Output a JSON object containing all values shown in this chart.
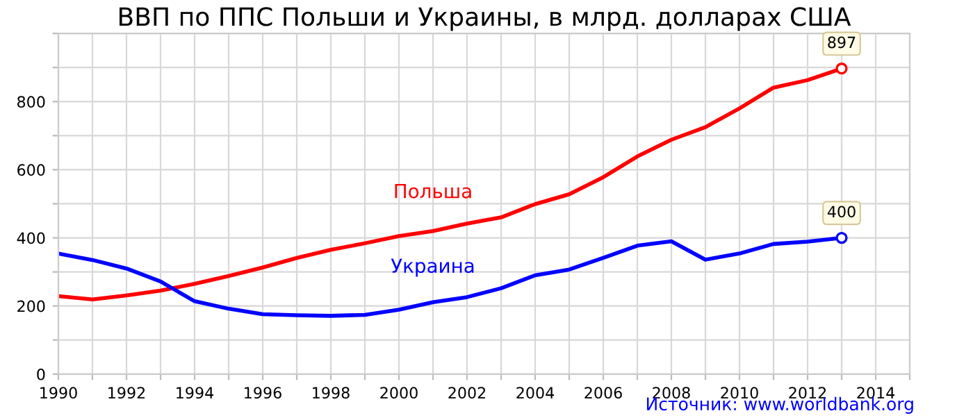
{
  "chart_data": {
    "type": "line",
    "title": "ВВП по ППС Польши и Украины, в млрд. долларах США",
    "x": [
      1990,
      1991,
      1992,
      1993,
      1994,
      1995,
      1996,
      1997,
      1998,
      1999,
      2000,
      2001,
      2002,
      2003,
      2004,
      2005,
      2006,
      2007,
      2008,
      2009,
      2010,
      2011,
      2012,
      2013
    ],
    "series": [
      {
        "name": "Польша",
        "color": "#ff0000",
        "values": [
          229,
          219,
          231,
          245,
          265,
          288,
          313,
          341,
          365,
          384,
          405,
          420,
          442,
          460,
          499,
          528,
          578,
          639,
          688,
          725,
          780,
          841,
          863,
          897
        ]
      },
      {
        "name": "Украина",
        "color": "#0000ff",
        "values": [
          354,
          335,
          310,
          272,
          214,
          192,
          176,
          173,
          171,
          174,
          189,
          211,
          226,
          252,
          290,
          307,
          341,
          377,
          390,
          336,
          354,
          382,
          389,
          400
        ]
      }
    ],
    "xlim": [
      1990,
      2015
    ],
    "xticks": [
      1990,
      {
        "value": 1991,
        "label": null
      },
      1992,
      {
        "value": 1993,
        "label": null
      },
      1994,
      {
        "value": 1995,
        "label": null
      },
      1996,
      {
        "value": 1997,
        "label": null
      },
      1998,
      {
        "value": 1999,
        "label": null
      },
      2000,
      {
        "value": 2001,
        "label": null
      },
      2002,
      {
        "value": 2003,
        "label": null
      },
      2004,
      {
        "value": 2005,
        "label": null
      },
      2006,
      {
        "value": 2007,
        "label": null
      },
      2008,
      {
        "value": 2009,
        "label": null
      },
      2010,
      {
        "value": 2011,
        "label": null
      },
      2012,
      {
        "value": 2013,
        "label": null
      },
      2014,
      {
        "value": 2015,
        "label": null
      }
    ],
    "ylim": [
      0,
      1000
    ],
    "yticks": [
      0,
      {
        "value": 100,
        "label": null
      },
      200,
      {
        "value": 300,
        "label": null
      },
      400,
      {
        "value": 500,
        "label": null
      },
      600,
      {
        "value": 700,
        "label": null
      },
      800,
      {
        "value": 900,
        "label": null
      },
      {
        "value": 1000,
        "label": null
      }
    ],
    "grid": true,
    "marker": "none",
    "line_style": "solid",
    "legend": false,
    "annotations": [
      {
        "text": "897",
        "x": 2013,
        "y": 897
      },
      {
        "text": "400",
        "x": 2013,
        "y": 400
      },
      "Источник: www.worldbank.org"
    ]
  }
}
